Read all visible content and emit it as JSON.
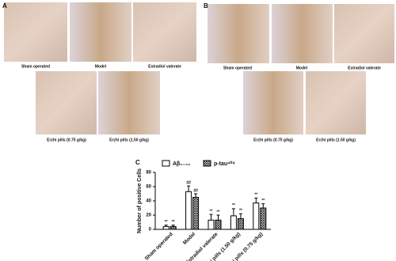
{
  "panel_a": {
    "label": "A",
    "images": [
      "Sham operated",
      "Model",
      "Estradiol valerate",
      "Erzhi pills (0.75 g/kg)",
      "Erzhi pills (1.50 g/kg)"
    ]
  },
  "panel_b": {
    "label": "B",
    "images": [
      "Sham operated",
      "Model",
      "Estradiol valerate",
      "Erzhi pills (0.75 g/kg)",
      "Erzhi pills (1.50 g/kg)"
    ]
  },
  "chart_data": {
    "type": "bar",
    "label": "C",
    "y_label": "Number of positive Cells",
    "categories": [
      "Sham operated",
      "Model",
      "Estradiol valerate",
      "Erzhi pills (1.50 g/kg)",
      "Erzhi pills (0.75 g/kg)"
    ],
    "series": [
      {
        "name": "Aβ₁₋₄₂",
        "color": "#ffffff",
        "values": [
          4,
          53,
          13,
          19,
          37
        ],
        "errors": [
          2,
          8,
          8,
          10,
          7
        ],
        "annotations": [
          "**",
          "##",
          "**",
          "**",
          "**"
        ]
      },
      {
        "name": "p-tau⁴⁰⁴",
        "color": "#555555",
        "values": [
          4,
          45,
          13,
          15,
          30
        ],
        "errors": [
          2,
          5,
          7,
          7,
          6
        ],
        "annotations": [
          "**",
          "##",
          "**",
          "**",
          "**"
        ]
      }
    ],
    "ylim": [
      0,
      80
    ],
    "yticks": [
      0,
      20,
      40,
      60,
      80
    ]
  }
}
